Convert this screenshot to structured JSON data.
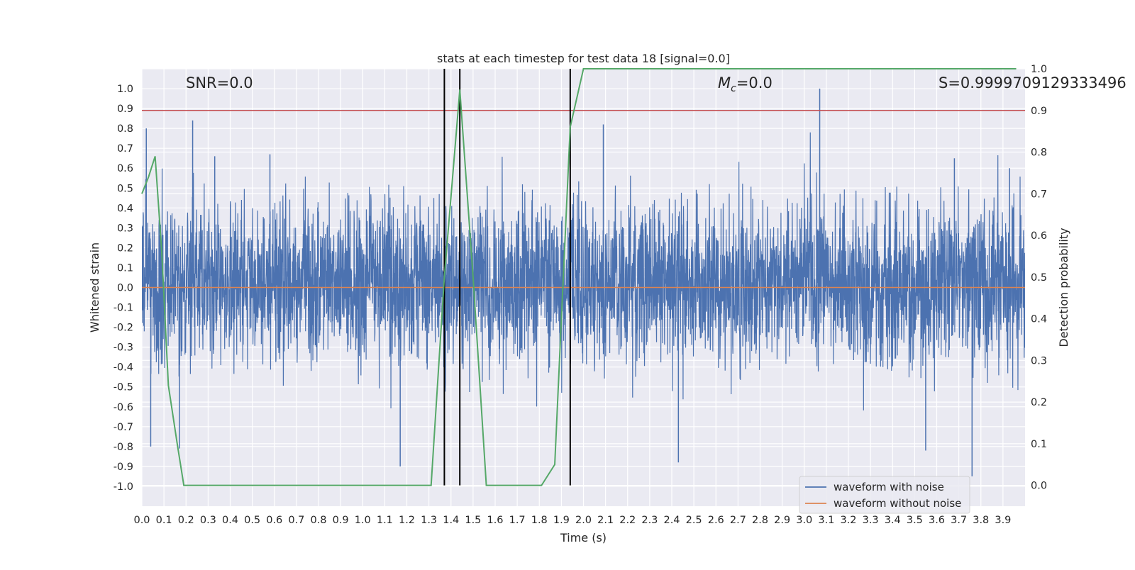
{
  "chart_data": {
    "type": "line",
    "title": "stats at each timestep for test data 18 [signal=0.0]",
    "xlabel": "Time (s)",
    "ylabel": "Whitened strain",
    "ylabel_right": "Detection probability",
    "xlim": [
      0.0,
      4.0
    ],
    "ylim": [
      -1.1,
      1.1
    ],
    "ylim_right": [
      -0.05,
      1.0
    ],
    "x_ticks": [
      "0.0",
      "0.1",
      "0.2",
      "0.3",
      "0.4",
      "0.5",
      "0.6",
      "0.7",
      "0.8",
      "0.9",
      "1.0",
      "1.1",
      "1.2",
      "1.3",
      "1.4",
      "1.5",
      "1.6",
      "1.7",
      "1.8",
      "1.9",
      "2.0",
      "2.1",
      "2.2",
      "2.3",
      "2.4",
      "2.5",
      "2.6",
      "2.7",
      "2.8",
      "2.9",
      "3.0",
      "3.1",
      "3.2",
      "3.3",
      "3.4",
      "3.5",
      "3.6",
      "3.7",
      "3.8",
      "3.9"
    ],
    "y_ticks": [
      "1.0",
      "0.9",
      "0.8",
      "0.7",
      "0.6",
      "0.5",
      "0.4",
      "0.3",
      "0.2",
      "0.1",
      "0.0",
      "-0.1",
      "-0.2",
      "-0.3",
      "-0.4",
      "-0.5",
      "-0.6",
      "-0.7",
      "-0.8",
      "-0.9",
      "-1.0"
    ],
    "y_ticks_right": [
      "1.0",
      "0.9",
      "0.8",
      "0.7",
      "0.6",
      "0.5",
      "0.4",
      "0.3",
      "0.2",
      "0.1",
      "0.0"
    ],
    "grid": true,
    "legend_position": "bottom-right",
    "annotations": {
      "snr": "SNR=0.0",
      "mc": "M",
      "mc_sub": "c",
      "mc_val": "=0.0",
      "s": "S=0.9999709129333496"
    },
    "vertical_markers_x": [
      1.37,
      1.44,
      1.94
    ],
    "threshold_right": 0.9,
    "series": [
      {
        "name": "waveform with noise",
        "color": "#4c72b0",
        "description_values": "dense noise between about -0.5 and 0.45 with spikes to about 0.85, 1.0 and -0.95",
        "spikes": [
          [
            0.02,
            0.8
          ],
          [
            0.04,
            -0.8
          ],
          [
            0.23,
            0.84
          ],
          [
            0.17,
            -0.81
          ],
          [
            0.33,
            0.66
          ],
          [
            0.58,
            0.67
          ],
          [
            1.17,
            -0.9
          ],
          [
            2.09,
            0.82
          ],
          [
            3.07,
            1.0
          ],
          [
            2.43,
            -0.88
          ],
          [
            3.55,
            -0.82
          ],
          [
            3.76,
            -0.95
          ],
          [
            3.68,
            0.65
          ],
          [
            3.93,
            0.6
          ]
        ]
      },
      {
        "name": "waveform without noise",
        "color": "#dd8452",
        "x": [
          0.0,
          4.0
        ],
        "y": [
          0.0,
          0.0
        ]
      },
      {
        "name": "",
        "color": "#55a868",
        "axis": "right",
        "x": [
          0.0,
          0.03,
          0.06,
          0.09,
          0.12,
          0.16,
          0.19,
          0.22,
          0.25,
          0.5,
          0.75,
          1.0,
          1.25,
          1.31,
          1.37,
          1.44,
          1.5,
          1.56,
          1.62,
          1.69,
          1.75,
          1.81,
          1.87,
          1.9,
          1.94,
          2.0,
          2.5,
          3.0,
          3.5,
          3.96
        ],
        "y": [
          0.7,
          0.74,
          0.79,
          0.56,
          0.24,
          0.1,
          0.0,
          0.0,
          0.0,
          0.0,
          0.0,
          0.0,
          0.0,
          0.0,
          0.5,
          0.95,
          0.5,
          0.0,
          0.0,
          0.0,
          0.0,
          0.0,
          0.05,
          0.4,
          0.86,
          1.0,
          1.0,
          1.0,
          1.0,
          1.0
        ]
      }
    ]
  }
}
